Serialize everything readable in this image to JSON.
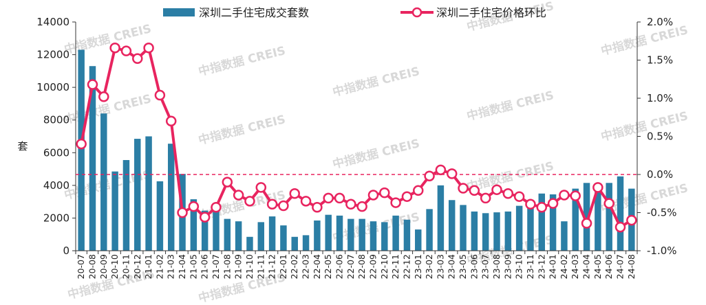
{
  "chart_data": {
    "type": "bar+line",
    "categories": [
      "20-07",
      "20-08",
      "20-09",
      "20-10",
      "20-11",
      "20-12",
      "21-01",
      "21-02",
      "21-03",
      "21-04",
      "21-05",
      "21-06",
      "21-07",
      "21-08",
      "21-09",
      "21-10",
      "21-11",
      "21-12",
      "22-01",
      "22-02",
      "22-03",
      "22-04",
      "22-05",
      "22-06",
      "22-07",
      "22-08",
      "22-09",
      "22-10",
      "22-11",
      "22-12",
      "23-01",
      "23-02",
      "23-03",
      "23-04",
      "23-05",
      "23-06",
      "23-07",
      "23-08",
      "23-09",
      "23-10",
      "23-11",
      "23-12",
      "24-01",
      "24-02",
      "24-03",
      "24-04",
      "24-05",
      "24-06",
      "24-07",
      "24-08"
    ],
    "series": [
      {
        "name": "深圳二手住宅成交套数",
        "type": "bar",
        "axis": "left",
        "color": "#2b7ea5",
        "values": [
          12300,
          11300,
          8400,
          4850,
          5550,
          6850,
          7000,
          4250,
          6550,
          4700,
          3150,
          2450,
          2500,
          1950,
          1800,
          850,
          1750,
          2100,
          1550,
          850,
          950,
          1850,
          2200,
          2150,
          1950,
          1950,
          1800,
          1750,
          2150,
          1900,
          1300,
          2550,
          4000,
          3100,
          2800,
          2400,
          2300,
          2350,
          2400,
          2750,
          2650,
          3500,
          3450,
          1800,
          3800,
          4150,
          3600,
          4150,
          4550,
          3800
        ]
      },
      {
        "name": "深圳二手住宅价格环比",
        "type": "line",
        "axis": "right",
        "unit": "%",
        "color": "#e8245f",
        "values": [
          0.4,
          1.18,
          1.02,
          1.66,
          1.62,
          1.52,
          1.66,
          1.04,
          0.7,
          -0.5,
          -0.42,
          -0.56,
          -0.43,
          -0.1,
          -0.27,
          -0.35,
          -0.17,
          -0.39,
          -0.41,
          -0.25,
          -0.35,
          -0.43,
          -0.31,
          -0.31,
          -0.39,
          -0.42,
          -0.27,
          -0.24,
          -0.37,
          -0.29,
          -0.21,
          -0.02,
          0.06,
          0.01,
          -0.18,
          -0.21,
          -0.31,
          -0.2,
          -0.25,
          -0.29,
          -0.39,
          -0.43,
          -0.38,
          -0.27,
          -0.28,
          -0.64,
          -0.17,
          -0.38,
          -0.69,
          -0.6
        ]
      }
    ],
    "y_left": {
      "label": "套",
      "min": 0,
      "max": 14000,
      "ticks": [
        "0",
        "2000",
        "4000",
        "6000",
        "8000",
        "10000",
        "12000",
        "14000"
      ]
    },
    "y_right": {
      "min": -1.0,
      "max": 2.0,
      "ticks": [
        "-1.0%",
        "-0.5%",
        "0.0%",
        "0.5%",
        "1.0%",
        "1.5%",
        "2.0%"
      ]
    },
    "zero_reference_line": {
      "value": 0.0,
      "axis": "right",
      "style": "dashed",
      "color": "#e8245f"
    },
    "legend_position": "top",
    "grid": false,
    "watermark": "中指数据 CREIS"
  }
}
